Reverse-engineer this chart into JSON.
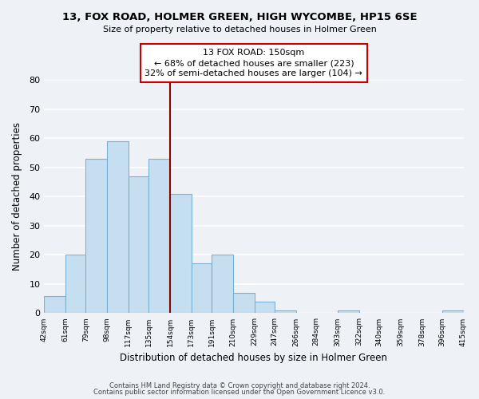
{
  "title": "13, FOX ROAD, HOLMER GREEN, HIGH WYCOMBE, HP15 6SE",
  "subtitle": "Size of property relative to detached houses in Holmer Green",
  "xlabel": "Distribution of detached houses by size in Holmer Green",
  "ylabel": "Number of detached properties",
  "bar_edges": [
    42,
    61,
    79,
    98,
    117,
    135,
    154,
    173,
    191,
    210,
    229,
    247,
    266,
    284,
    303,
    322,
    340,
    359,
    378,
    396,
    415
  ],
  "bar_heights": [
    6,
    20,
    53,
    59,
    47,
    53,
    41,
    17,
    20,
    7,
    4,
    1,
    0,
    0,
    1,
    0,
    0,
    0,
    0,
    1
  ],
  "bar_color": "#c6dff0",
  "bar_edge_color": "#7ab0d4",
  "vline_x": 154,
  "vline_color": "#8b0000",
  "ylim": [
    0,
    80
  ],
  "annotation_title": "13 FOX ROAD: 150sqm",
  "annotation_line1": "← 68% of detached houses are smaller (223)",
  "annotation_line2": "32% of semi-detached houses are larger (104) →",
  "footer1": "Contains HM Land Registry data © Crown copyright and database right 2024.",
  "footer2": "Contains public sector information licensed under the Open Government Licence v3.0.",
  "tick_labels": [
    "42sqm",
    "61sqm",
    "79sqm",
    "98sqm",
    "117sqm",
    "135sqm",
    "154sqm",
    "173sqm",
    "191sqm",
    "210sqm",
    "229sqm",
    "247sqm",
    "266sqm",
    "284sqm",
    "303sqm",
    "322sqm",
    "340sqm",
    "359sqm",
    "378sqm",
    "396sqm",
    "415sqm"
  ],
  "yticks": [
    0,
    10,
    20,
    30,
    40,
    50,
    60,
    70,
    80
  ],
  "background_color": "#eef2f7",
  "grid_color": "#ffffff"
}
